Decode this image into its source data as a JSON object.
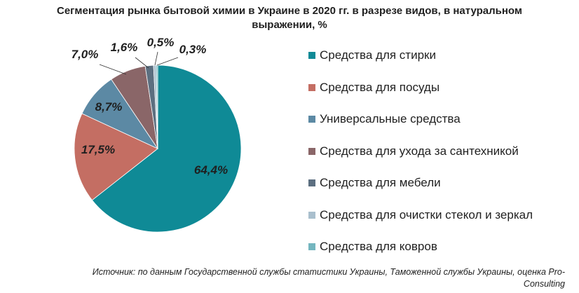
{
  "title_lines": [
    "Сегментация рынка бытовой химии в Украине в 2020 гг. в разрезе видов, в натуральном",
    "выражении, %"
  ],
  "chart_data": {
    "type": "pie",
    "title": "Сегментация рынка бытовой химии в Украине в 2020 гг. в разрезе видов, в натуральном выражении, %",
    "legend_position": "right",
    "slices": [
      {
        "label": "Средства для стирки",
        "value": 64.4,
        "display": "64,4%",
        "color": "#0f8a96"
      },
      {
        "label": "Средства для посуды",
        "value": 17.5,
        "display": "17,5%",
        "color": "#c46e63"
      },
      {
        "label": "Универсальные средства",
        "value": 8.7,
        "display": "8,7%",
        "color": "#5c89a4"
      },
      {
        "label": "Средства для ухода за сантехникой",
        "value": 7.0,
        "display": "7,0%",
        "color": "#8a6668"
      },
      {
        "label": "Средства для мебели",
        "value": 1.6,
        "display": "1,6%",
        "color": "#5c6f80"
      },
      {
        "label": "Средства для очистки стекол и зеркал",
        "value": 0.5,
        "display": "0,5%",
        "color": "#a9bfcd"
      },
      {
        "label": "Средства для ковров",
        "value": 0.3,
        "display": "0,3%",
        "color": "#74b6bf"
      }
    ]
  },
  "source_lines": [
    "Источник: по данным Государственной службы статистики Украины, Таможенной службы Украины, оценка Pro-",
    "Consulting"
  ]
}
